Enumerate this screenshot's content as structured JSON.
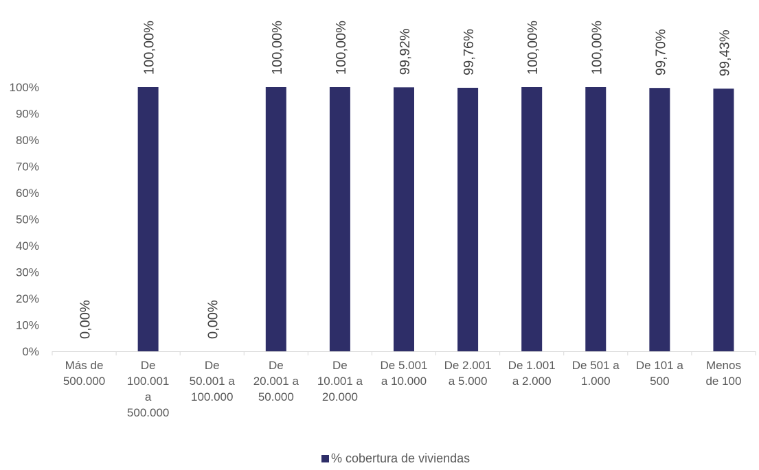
{
  "chart_data": {
    "type": "bar",
    "categories": [
      [
        "Más de",
        "500.000"
      ],
      [
        "De",
        "100.001",
        "a",
        "500.000"
      ],
      [
        "De",
        "50.001 a",
        "100.000"
      ],
      [
        "De",
        "20.001 a",
        "50.000"
      ],
      [
        "De",
        "10.001 a",
        "20.000"
      ],
      [
        "De 5.001",
        "a 10.000"
      ],
      [
        "De 2.001",
        "a 5.000"
      ],
      [
        "De 1.001",
        "a 2.000"
      ],
      [
        "De 501 a",
        "1.000"
      ],
      [
        "De 101 a",
        "500"
      ],
      [
        "Menos",
        "de 100"
      ]
    ],
    "series": [
      {
        "name": "% cobertura de viviendas",
        "values": [
          0.0,
          100.0,
          0.0,
          100.0,
          100.0,
          99.92,
          99.76,
          100.0,
          100.0,
          99.7,
          99.43
        ],
        "labels": [
          "0,00%",
          "100,00%",
          "0,00%",
          "100,00%",
          "100,00%",
          "99,92%",
          "99,76%",
          "100,00%",
          "100,00%",
          "99,70%",
          "99,43%"
        ],
        "color": "#2e2e68"
      }
    ],
    "ylim": [
      0,
      100
    ],
    "yticks": [
      "0%",
      "10%",
      "20%",
      "30%",
      "40%",
      "50%",
      "60%",
      "70%",
      "80%",
      "90%",
      "100%"
    ],
    "grid": false,
    "legend_position": "bottom",
    "axis_color": "#d9d9d9"
  }
}
